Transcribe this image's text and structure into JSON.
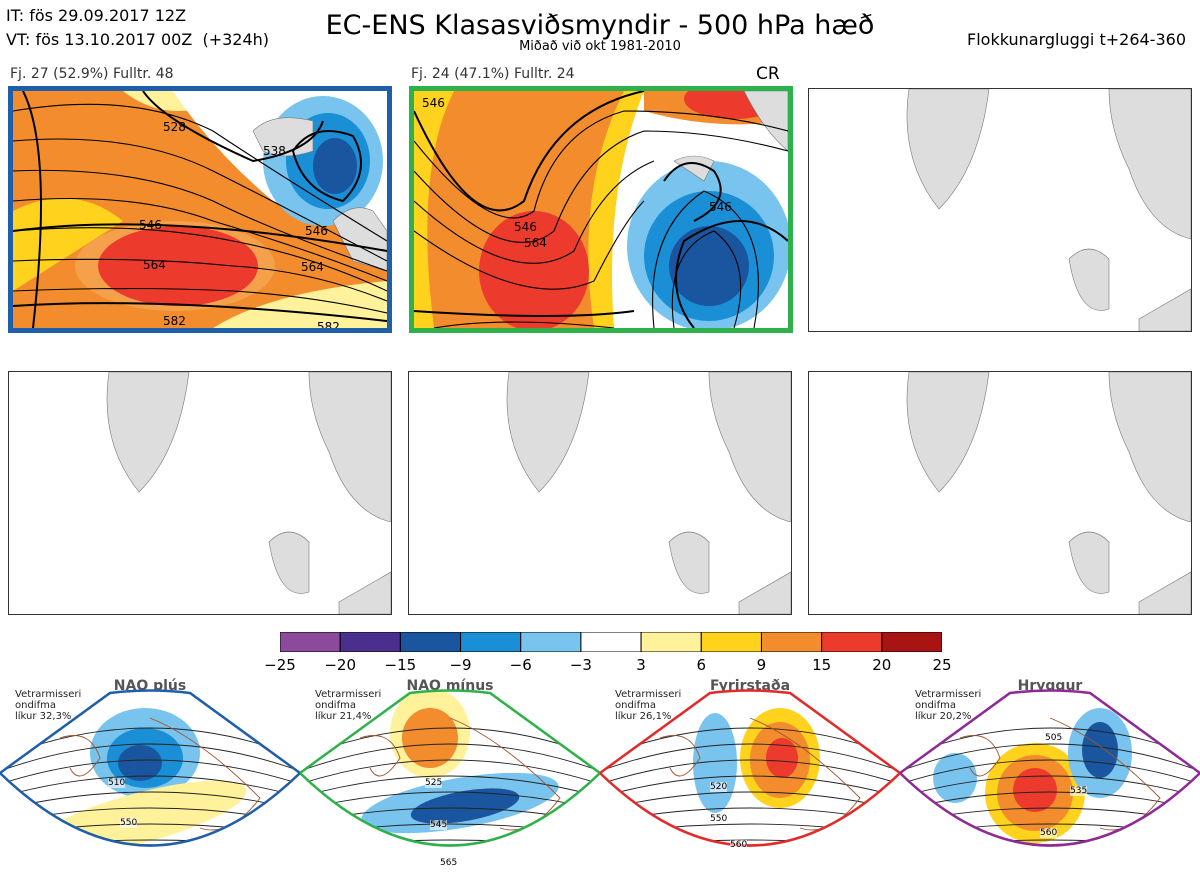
{
  "header": {
    "it_line": "IT: fös 29.09.2017 12Z",
    "vt_line": "VT: fös 13.10.2017 00Z  (+324h)",
    "title": "EC-ENS Klasasviðsmyndir - 500 hPa hæð",
    "subtitle": "Miðað við okt 1981-2010",
    "window": "Flokkunargluggi t+264-360"
  },
  "panels": [
    {
      "label": "Fj. 27 (52.9%)   Fulltr. 48",
      "border": "#1f5ea8",
      "contours": [
        "528",
        "538",
        "546",
        "546",
        "564",
        "564",
        "582",
        "582"
      ]
    },
    {
      "label": "Fj. 24 (47.1%)   Fulltr. 24",
      "border": "#2eb04a",
      "cr": "CR",
      "contours": [
        "546",
        "546",
        "564",
        "546"
      ]
    }
  ],
  "colorbar": {
    "labels": [
      "−25",
      "−20",
      "−15",
      "−9",
      "−6",
      "−3",
      "3",
      "6",
      "9",
      "15",
      "20",
      "25"
    ],
    "colors": [
      "#8b4a9c",
      "#4a2f8e",
      "#1a56a0",
      "#1a8fd6",
      "#78c4ee",
      "#ffffff",
      "#fff29a",
      "#ffd21e",
      "#f28c2c",
      "#ec3a2c",
      "#a81414"
    ]
  },
  "regimes": [
    {
      "name": "NAO plús",
      "note": "Vetrarmisseri\nondifma\nlíkur 32,3%",
      "color": "#1f5ea8",
      "dots": "#1f5ea8",
      "contours": [
        "510",
        "550"
      ]
    },
    {
      "name": "NAO mínus",
      "note": "Vetrarmisseri\nondifma\nlíkur 21,4%",
      "color": "#2eb04a",
      "dots": "#2eb04a",
      "contours": [
        "525",
        "545",
        "565"
      ]
    },
    {
      "name": "Fyrirstaða",
      "note": "Vetrarmisseri\nondifma\nlíkur 26,1%",
      "color": "#e22a2a",
      "dots": "#e22a2a",
      "contours": [
        "520",
        "550",
        "560"
      ]
    },
    {
      "name": "Hryggur",
      "note": "Vetrarmisseri\nondifma\nlíkur 20,2%",
      "color": "#8e2a94",
      "dots": "#ee6cee",
      "contours": [
        "505",
        "535",
        "560"
      ]
    }
  ]
}
